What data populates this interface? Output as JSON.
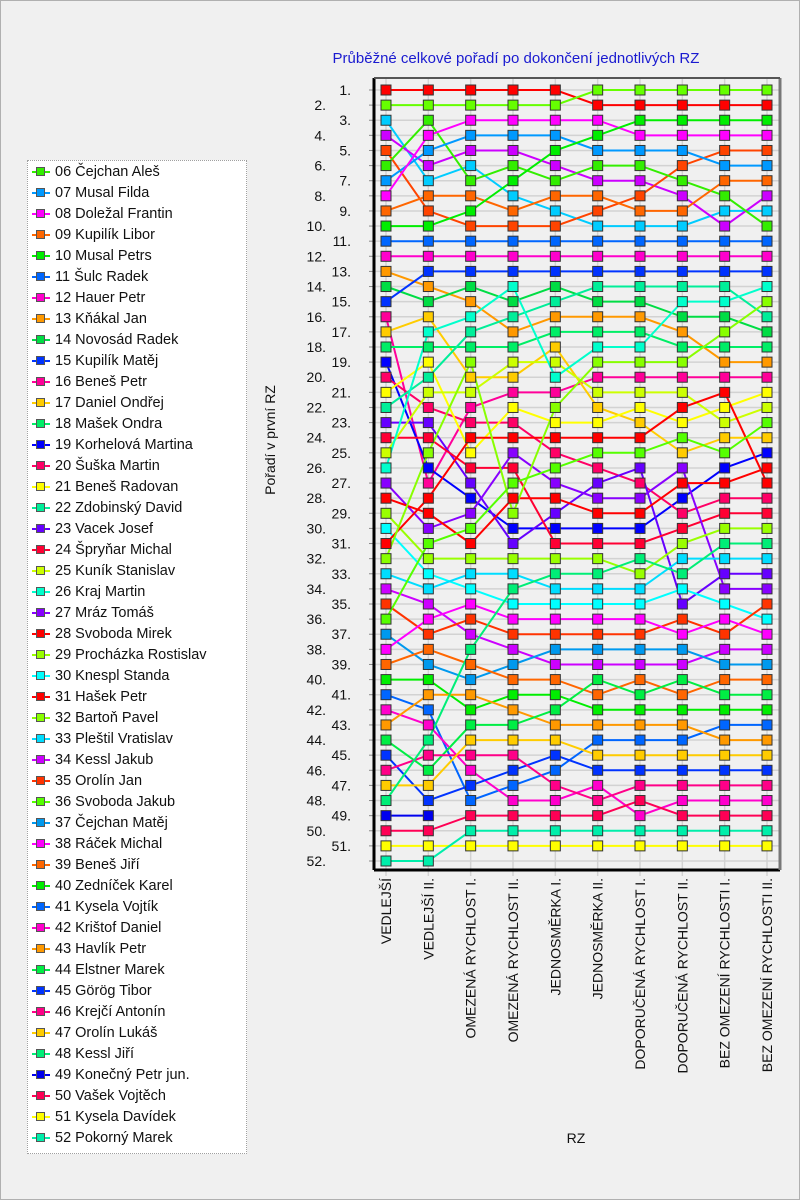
{
  "chart_data": {
    "type": "line",
    "title": "Průběžné celkové pořadí po dokončení jednotlivých RZ",
    "xlabel": "RZ",
    "ylabel": "Pořadí v první RZ",
    "ylim": [
      1,
      52
    ],
    "y_inverted": true,
    "grid": true,
    "legend_placement": "left",
    "categories": [
      "VEDLEJŠÍ",
      "VEDLEJŠÍ II.",
      "OMEZENÁ RYCHLOST I.",
      "OMEZENÁ RYCHLOST II.",
      "JEDNOSMĚRKA I.",
      "JEDNOSMĚRKA II.",
      "DOPORUČENÁ RYCHLOST I.",
      "DOPORUČENÁ RYCHLOST II.",
      "BEZ OMEZENÍ RYCHLOSTI I.",
      "BEZ OMEZENÍ RYCHLOSTI II."
    ],
    "series": [
      {
        "values": [
          1,
          1,
          1,
          1,
          1,
          2,
          2,
          2,
          2,
          2
        ],
        "color": "#ff0000"
      },
      {
        "values": [
          2,
          2,
          2,
          2,
          2,
          1,
          1,
          1,
          1,
          1
        ],
        "color": "#66ff00"
      },
      {
        "values": [
          3,
          7,
          6,
          8,
          9,
          10,
          10,
          10,
          9,
          9
        ],
        "color": "#00ccff"
      },
      {
        "values": [
          4,
          6,
          5,
          5,
          6,
          7,
          7,
          8,
          10,
          8
        ],
        "color": "#cc00ff"
      },
      {
        "values": [
          5,
          9,
          10,
          10,
          10,
          9,
          8,
          6,
          5,
          5
        ],
        "color": "#ff4400"
      },
      {
        "name": "06 Čejchan Aleš",
        "values": [
          6,
          3,
          7,
          6,
          7,
          6,
          6,
          7,
          8,
          10
        ],
        "color": "#33ee00"
      },
      {
        "name": "07 Musal Filda",
        "values": [
          7,
          5,
          4,
          4,
          4,
          5,
          5,
          5,
          6,
          6
        ],
        "color": "#0099ff"
      },
      {
        "name": "08 Doležal Frantin",
        "values": [
          8,
          4,
          3,
          3,
          3,
          3,
          4,
          4,
          4,
          4
        ],
        "color": "#ff00ff"
      },
      {
        "name": "09 Kupilík Libor",
        "values": [
          9,
          8,
          8,
          9,
          8,
          8,
          9,
          9,
          7,
          7
        ],
        "color": "#ff6600"
      },
      {
        "name": "10 Musal Petrs",
        "values": [
          10,
          10,
          9,
          7,
          5,
          4,
          3,
          3,
          3,
          3
        ],
        "color": "#00ee00"
      },
      {
        "name": "11 Šulc Radek",
        "values": [
          11,
          11,
          11,
          11,
          11,
          11,
          11,
          11,
          11,
          11
        ],
        "color": "#0066ff"
      },
      {
        "name": "12 Hauer Petr",
        "values": [
          12,
          12,
          12,
          12,
          12,
          12,
          12,
          12,
          12,
          12
        ],
        "color": "#ff00cc"
      },
      {
        "name": "13 Kňákal Jan",
        "values": [
          13,
          14,
          15,
          17,
          16,
          16,
          16,
          17,
          19,
          19
        ],
        "color": "#ff9900"
      },
      {
        "name": "14 Novosád Radek",
        "values": [
          14,
          15,
          14,
          15,
          14,
          15,
          15,
          16,
          16,
          17
        ],
        "color": "#00dd44"
      },
      {
        "name": "15 Kupilík Matěj",
        "values": [
          15,
          13,
          13,
          13,
          13,
          13,
          13,
          13,
          13,
          13
        ],
        "color": "#0033ff"
      },
      {
        "name": "16 Beneš Petr",
        "values": [
          16,
          27,
          22,
          21,
          21,
          20,
          20,
          20,
          20,
          20
        ],
        "color": "#ff0099"
      },
      {
        "name": "17 Daniel Ondřej",
        "values": [
          17,
          16,
          20,
          20,
          18,
          22,
          23,
          25,
          24,
          24
        ],
        "color": "#ffcc00"
      },
      {
        "name": "18 Mašek Ondra",
        "values": [
          18,
          18,
          18,
          18,
          17,
          17,
          17,
          18,
          18,
          18
        ],
        "color": "#00ee66"
      },
      {
        "name": "19 Korhelová Martina",
        "values": [
          19,
          26,
          28,
          30,
          30,
          30,
          30,
          28,
          26,
          25
        ],
        "color": "#0000ff"
      },
      {
        "name": "20 Šuška Martin",
        "values": [
          20,
          22,
          23,
          23,
          25,
          26,
          27,
          29,
          28,
          28
        ],
        "color": "#ff0066"
      },
      {
        "name": "21 Beneš Radovan",
        "values": [
          21,
          19,
          25,
          22,
          23,
          23,
          22,
          23,
          22,
          21
        ],
        "color": "#ffff00"
      },
      {
        "name": "22 Zdobinský David",
        "values": [
          22,
          20,
          17,
          16,
          15,
          14,
          14,
          14,
          14,
          16
        ],
        "color": "#00ee99"
      },
      {
        "name": "23 Vacek Josef",
        "values": [
          23,
          23,
          27,
          31,
          29,
          27,
          26,
          35,
          33,
          33
        ],
        "color": "#6600ff"
      },
      {
        "name": "24 Špryňar Michal",
        "values": [
          24,
          24,
          26,
          26,
          31,
          31,
          31,
          30,
          29,
          29
        ],
        "color": "#ff0033"
      },
      {
        "name": "25 Kuník Stanislav",
        "values": [
          25,
          21,
          21,
          19,
          19,
          21,
          21,
          21,
          23,
          22
        ],
        "color": "#ccff00"
      },
      {
        "name": "26 Kraj Martin",
        "values": [
          26,
          17,
          16,
          14,
          20,
          18,
          18,
          15,
          15,
          14
        ],
        "color": "#00ffcc"
      },
      {
        "name": "27 Mráz Tomáš",
        "values": [
          27,
          30,
          29,
          25,
          27,
          28,
          28,
          26,
          34,
          34
        ],
        "color": "#8800ff"
      },
      {
        "name": "28 Svoboda Mirek",
        "values": [
          28,
          29,
          31,
          28,
          28,
          29,
          29,
          27,
          27,
          26
        ],
        "color": "#ff0000"
      },
      {
        "name": "29 Procházka Rostislav",
        "values": [
          29,
          32,
          32,
          32,
          32,
          32,
          33,
          31,
          30,
          30
        ],
        "color": "#99ff00"
      },
      {
        "name": "30 Knespl Standa",
        "values": [
          30,
          33,
          34,
          35,
          35,
          35,
          35,
          34,
          35,
          36
        ],
        "color": "#00ffff"
      },
      {
        "name": "31 Hašek Petr",
        "values": [
          31,
          28,
          24,
          24,
          24,
          24,
          24,
          22,
          21,
          27
        ],
        "color": "#ff0000"
      },
      {
        "name": "32 Bartoň Pavel",
        "values": [
          32,
          25,
          19,
          29,
          22,
          19,
          19,
          19,
          17,
          15
        ],
        "color": "#88ff00"
      },
      {
        "name": "33 Pleštil Vratislav",
        "values": [
          33,
          34,
          33,
          33,
          34,
          34,
          34,
          32,
          32,
          32
        ],
        "color": "#00ddff"
      },
      {
        "name": "34 Kessl Jakub",
        "values": [
          34,
          35,
          37,
          38,
          39,
          39,
          39,
          39,
          38,
          38
        ],
        "color": "#cc00ff"
      },
      {
        "name": "35 Orolín Jan",
        "values": [
          35,
          37,
          36,
          37,
          37,
          37,
          37,
          36,
          37,
          35
        ],
        "color": "#ff3300"
      },
      {
        "name": "36 Svoboda Jakub",
        "values": [
          36,
          31,
          30,
          27,
          26,
          25,
          25,
          24,
          25,
          23
        ],
        "color": "#55ff00"
      },
      {
        "name": "37 Čejchan Matěj",
        "values": [
          37,
          39,
          40,
          39,
          38,
          38,
          38,
          38,
          39,
          39
        ],
        "color": "#0099ee"
      },
      {
        "name": "38 Ráček Michal",
        "values": [
          38,
          36,
          35,
          36,
          36,
          36,
          36,
          37,
          36,
          37
        ],
        "color": "#ff00ff"
      },
      {
        "name": "39 Beneš Jiří",
        "values": [
          39,
          38,
          39,
          40,
          40,
          41,
          40,
          41,
          40,
          40
        ],
        "color": "#ff6600"
      },
      {
        "name": "40 Zedníček Karel",
        "values": [
          40,
          40,
          42,
          41,
          41,
          42,
          42,
          42,
          42,
          42
        ],
        "color": "#00ee00"
      },
      {
        "name": "41 Kysela Vojtík",
        "values": [
          41,
          42,
          48,
          47,
          46,
          44,
          44,
          44,
          43,
          43
        ],
        "color": "#0066ff"
      },
      {
        "name": "42 Krištof Daniel",
        "values": [
          42,
          43,
          46,
          48,
          48,
          47,
          49,
          48,
          48,
          48
        ],
        "color": "#ff00cc"
      },
      {
        "name": "43 Havlík Petr",
        "values": [
          43,
          41,
          41,
          42,
          43,
          43,
          43,
          43,
          44,
          44
        ],
        "color": "#ff9900"
      },
      {
        "name": "44 Elstner Marek",
        "values": [
          44,
          46,
          43,
          43,
          42,
          40,
          41,
          40,
          41,
          41
        ],
        "color": "#00ee44"
      },
      {
        "name": "45 Görög Tibor",
        "values": [
          45,
          48,
          47,
          46,
          45,
          46,
          46,
          46,
          46,
          46
        ],
        "color": "#0033ff"
      },
      {
        "name": "46 Krejčí Antonín",
        "values": [
          46,
          45,
          45,
          45,
          47,
          48,
          47,
          47,
          47,
          47
        ],
        "color": "#ff0088"
      },
      {
        "name": "47 Orolín Lukáš",
        "values": [
          47,
          47,
          44,
          44,
          44,
          45,
          45,
          45,
          45,
          45
        ],
        "color": "#ffcc00"
      },
      {
        "name": "48 Kessl Jiří",
        "values": [
          48,
          44,
          38,
          34,
          33,
          33,
          32,
          33,
          31,
          31
        ],
        "color": "#00ee77"
      },
      {
        "name": "49 Konečný Petr jun.",
        "values": [
          49,
          49,
          null,
          null,
          null,
          null,
          null,
          null,
          null,
          null
        ],
        "color": "#0000ee"
      },
      {
        "name": "50 Vašek Vojtěch",
        "values": [
          50,
          50,
          49,
          49,
          49,
          49,
          48,
          49,
          49,
          49
        ],
        "color": "#ff0055"
      },
      {
        "name": "51 Kysela Davídek",
        "values": [
          51,
          51,
          51,
          51,
          51,
          51,
          51,
          51,
          51,
          51
        ],
        "color": "#ffff00"
      },
      {
        "name": "52 Pokorný Marek",
        "values": [
          52,
          52,
          50,
          50,
          50,
          50,
          50,
          50,
          50,
          50
        ],
        "color": "#00eeaa"
      }
    ]
  }
}
